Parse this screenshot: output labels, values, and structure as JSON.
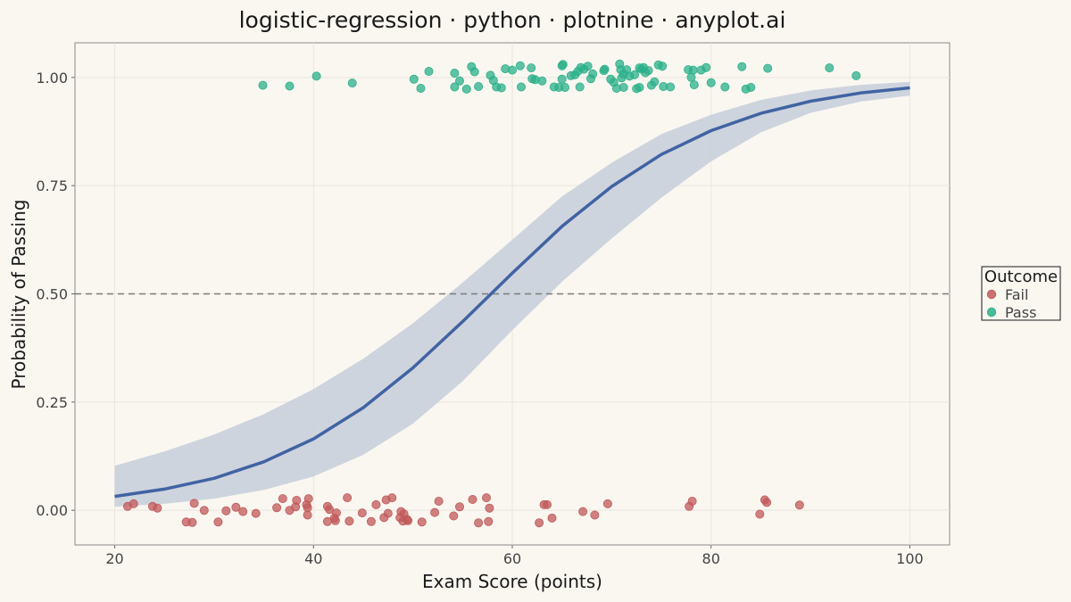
{
  "chart_data": {
    "type": "scatter",
    "title": "logistic-regression · python · plotnine · anyplot.ai",
    "xlabel": "Exam Score (points)",
    "ylabel": "Probability of Passing",
    "xlim": [
      16,
      104
    ],
    "ylim": [
      -0.08,
      1.08
    ],
    "x_ticks": [
      20,
      40,
      60,
      80,
      100
    ],
    "y_ticks": [
      0.0,
      0.25,
      0.5,
      0.75,
      1.0
    ],
    "x_tick_labels": [
      "20",
      "40",
      "60",
      "80",
      "100"
    ],
    "y_tick_labels": [
      "0.00",
      "0.25",
      "0.50",
      "0.75",
      "1.00"
    ],
    "grid": true,
    "threshold": 0.5,
    "curve": {
      "x": [
        20,
        25,
        30,
        35,
        40,
        45,
        50,
        55,
        60,
        65,
        70,
        75,
        80,
        85,
        90,
        95,
        100
      ],
      "y": [
        0.032,
        0.049,
        0.074,
        0.112,
        0.165,
        0.237,
        0.329,
        0.436,
        0.548,
        0.656,
        0.748,
        0.822,
        0.877,
        0.917,
        0.945,
        0.964,
        0.976
      ]
    },
    "ci_band": {
      "x": [
        20,
        25,
        30,
        35,
        40,
        45,
        50,
        55,
        60,
        65,
        70,
        75,
        80,
        85,
        90,
        95,
        100
      ],
      "lower": [
        0.008,
        0.015,
        0.027,
        0.047,
        0.078,
        0.128,
        0.2,
        0.298,
        0.416,
        0.528,
        0.628,
        0.722,
        0.806,
        0.873,
        0.918,
        0.944,
        0.958
      ],
      "upper": [
        0.103,
        0.136,
        0.175,
        0.222,
        0.28,
        0.35,
        0.432,
        0.526,
        0.625,
        0.725,
        0.803,
        0.869,
        0.914,
        0.948,
        0.97,
        0.983,
        0.99
      ]
    },
    "legend": {
      "title": "Outcome",
      "position": "right",
      "entries": [
        "Fail",
        "Pass"
      ]
    },
    "series": [
      {
        "name": "Fail",
        "color": "#c0595a",
        "points": [
          [
            21.3,
            0.009
          ],
          [
            21.9,
            0.015
          ],
          [
            23.8,
            0.009
          ],
          [
            24.3,
            0.005
          ],
          [
            27.2,
            -0.027
          ],
          [
            27.8,
            -0.028
          ],
          [
            28.0,
            0.016
          ],
          [
            29.0,
            0.0
          ],
          [
            30.4,
            -0.027
          ],
          [
            31.2,
            -0.001
          ],
          [
            32.2,
            0.007
          ],
          [
            32.9,
            -0.003
          ],
          [
            34.2,
            -0.007
          ],
          [
            36.3,
            0.006
          ],
          [
            36.9,
            0.027
          ],
          [
            37.6,
            0.0
          ],
          [
            38.2,
            0.008
          ],
          [
            38.3,
            0.023
          ],
          [
            39.3,
            0.013
          ],
          [
            39.4,
            0.006
          ],
          [
            39.4,
            -0.011
          ],
          [
            39.5,
            0.027
          ],
          [
            41.4,
            0.009
          ],
          [
            41.4,
            -0.026
          ],
          [
            41.6,
            0.002
          ],
          [
            42.1,
            -0.018
          ],
          [
            42.2,
            -0.024
          ],
          [
            42.3,
            -0.006
          ],
          [
            43.4,
            0.029
          ],
          [
            43.6,
            -0.025
          ],
          [
            44.9,
            -0.006
          ],
          [
            45.8,
            -0.026
          ],
          [
            46.3,
            0.013
          ],
          [
            47.1,
            -0.017
          ],
          [
            47.3,
            0.024
          ],
          [
            47.5,
            -0.007
          ],
          [
            47.9,
            0.029
          ],
          [
            48.7,
            -0.017
          ],
          [
            48.8,
            -0.003
          ],
          [
            49.0,
            -0.025
          ],
          [
            49.1,
            -0.008
          ],
          [
            49.4,
            -0.021
          ],
          [
            49.5,
            -0.024
          ],
          [
            50.9,
            -0.027
          ],
          [
            52.2,
            -0.005
          ],
          [
            52.6,
            0.021
          ],
          [
            54.1,
            -0.013
          ],
          [
            54.7,
            0.008
          ],
          [
            56.0,
            0.025
          ],
          [
            56.6,
            -0.029
          ],
          [
            57.4,
            0.029
          ],
          [
            57.6,
            -0.026
          ],
          [
            57.7,
            0.005
          ],
          [
            62.7,
            -0.029
          ],
          [
            63.2,
            0.013
          ],
          [
            63.5,
            0.013
          ],
          [
            64.0,
            -0.018
          ],
          [
            67.1,
            -0.003
          ],
          [
            68.3,
            -0.011
          ],
          [
            69.6,
            0.015
          ],
          [
            77.8,
            0.009
          ],
          [
            78.1,
            0.021
          ],
          [
            84.9,
            -0.009
          ],
          [
            85.4,
            0.024
          ],
          [
            85.6,
            0.018
          ],
          [
            88.9,
            0.012
          ]
        ]
      },
      {
        "name": "Pass",
        "color": "#2bb08a",
        "points": [
          [
            34.9,
            0.982
          ],
          [
            37.6,
            0.98
          ],
          [
            40.3,
            1.003
          ],
          [
            43.9,
            0.987
          ],
          [
            50.1,
            0.996
          ],
          [
            50.8,
            0.975
          ],
          [
            51.6,
            1.014
          ],
          [
            54.2,
            1.01
          ],
          [
            54.2,
            0.978
          ],
          [
            54.7,
            0.992
          ],
          [
            55.4,
            0.973
          ],
          [
            55.9,
            1.025
          ],
          [
            56.2,
            1.013
          ],
          [
            56.6,
            0.979
          ],
          [
            57.8,
            1.005
          ],
          [
            58.1,
            0.993
          ],
          [
            58.4,
            0.978
          ],
          [
            58.9,
            0.976
          ],
          [
            59.3,
            1.02
          ],
          [
            60.0,
            1.017
          ],
          [
            60.8,
            1.027
          ],
          [
            60.9,
            0.978
          ],
          [
            61.9,
            1.022
          ],
          [
            62.0,
            0.997
          ],
          [
            62.3,
            0.995
          ],
          [
            63.0,
            0.992
          ],
          [
            64.2,
            0.978
          ],
          [
            64.7,
            0.977
          ],
          [
            65.0,
            0.996
          ],
          [
            65.0,
            1.027
          ],
          [
            65.1,
            1.03
          ],
          [
            65.3,
            0.977
          ],
          [
            65.9,
            1.004
          ],
          [
            66.3,
            1.006
          ],
          [
            66.6,
            1.014
          ],
          [
            66.8,
            0.978
          ],
          [
            66.9,
            1.023
          ],
          [
            67.2,
            1.019
          ],
          [
            67.6,
            1.026
          ],
          [
            67.9,
            0.997
          ],
          [
            68.1,
            1.008
          ],
          [
            69.2,
            1.016
          ],
          [
            69.3,
            1.019
          ],
          [
            69.9,
            0.996
          ],
          [
            70.2,
            0.989
          ],
          [
            70.5,
            0.975
          ],
          [
            70.8,
            1.031
          ],
          [
            70.9,
            1.018
          ],
          [
            71.0,
            0.999
          ],
          [
            71.2,
            1.008
          ],
          [
            71.2,
            0.977
          ],
          [
            71.5,
            1.018
          ],
          [
            71.8,
            1.003
          ],
          [
            72.3,
            1.006
          ],
          [
            72.5,
            0.974
          ],
          [
            72.8,
            0.977
          ],
          [
            72.8,
            1.022
          ],
          [
            73.0,
            1.019
          ],
          [
            73.2,
            1.023
          ],
          [
            73.4,
            1.011
          ],
          [
            73.7,
            1.016
          ],
          [
            74.0,
            0.982
          ],
          [
            74.3,
            0.99
          ],
          [
            74.7,
            1.029
          ],
          [
            75.1,
            1.026
          ],
          [
            75.2,
            0.979
          ],
          [
            75.9,
            0.978
          ],
          [
            77.7,
            1.018
          ],
          [
            78.0,
            1.0
          ],
          [
            78.2,
            1.017
          ],
          [
            78.3,
            0.983
          ],
          [
            79.0,
            1.017
          ],
          [
            79.5,
            1.023
          ],
          [
            80.0,
            0.988
          ],
          [
            81.4,
            0.978
          ],
          [
            83.1,
            1.025
          ],
          [
            83.5,
            0.973
          ],
          [
            84.0,
            0.977
          ],
          [
            85.7,
            1.021
          ],
          [
            91.9,
            1.022
          ],
          [
            94.6,
            1.004
          ]
        ]
      }
    ]
  }
}
